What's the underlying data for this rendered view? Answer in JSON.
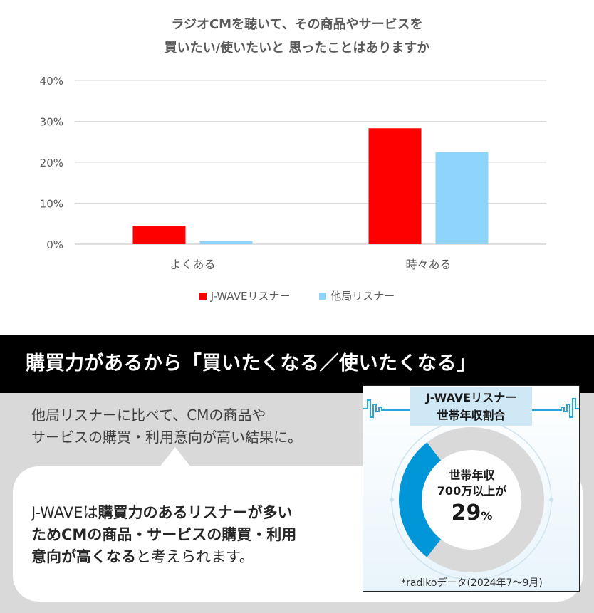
{
  "chart_data": {
    "type": "bar",
    "title_lines": [
      "ラジオCMを聴いて、その商品やサービスを",
      "買いたい/使いたいと 思ったことはありますか"
    ],
    "categories": [
      "よくある",
      "時々ある"
    ],
    "series": [
      {
        "name": "J-WAVEリスナー",
        "color": "#ff0000",
        "values": [
          4.5,
          28.3
        ]
      },
      {
        "name": "他局リスナー",
        "color": "#8fd5fb",
        "values": [
          0.7,
          22.5
        ]
      }
    ],
    "yticks": [
      "0%",
      "10%",
      "20%",
      "30%",
      "40%"
    ],
    "ylim": [
      0,
      40
    ],
    "grid": true,
    "legend_position": "bottom"
  },
  "banner": {
    "text": "購買力があるから「買いたくなる／使いたくなる」"
  },
  "intro": {
    "line1": "他局リスナーに比べて、CMの商品や",
    "line2": "サービスの購買・利用意向が高い結果に。"
  },
  "bubble": {
    "l1a": "J-WAVEは",
    "l1b": "購買力のあるリスナーが多い",
    "l2": "ためCMの商品・サービスの購買・利用",
    "l3a": "意向が高くなる",
    "l3b": "と考えられます。"
  },
  "card": {
    "title_line1": "J-WAVEリスナー",
    "title_line2": "世帯年収割合",
    "donut_label1": "世帯年収",
    "donut_label2": "700万以上が",
    "percent_value": 29,
    "percent_number": "29",
    "percent_unit": "%",
    "note": "*radikoデータ(2024年7〜9月)",
    "highlight_color": "#0096d8",
    "rest_color": "#d9d9d9"
  }
}
